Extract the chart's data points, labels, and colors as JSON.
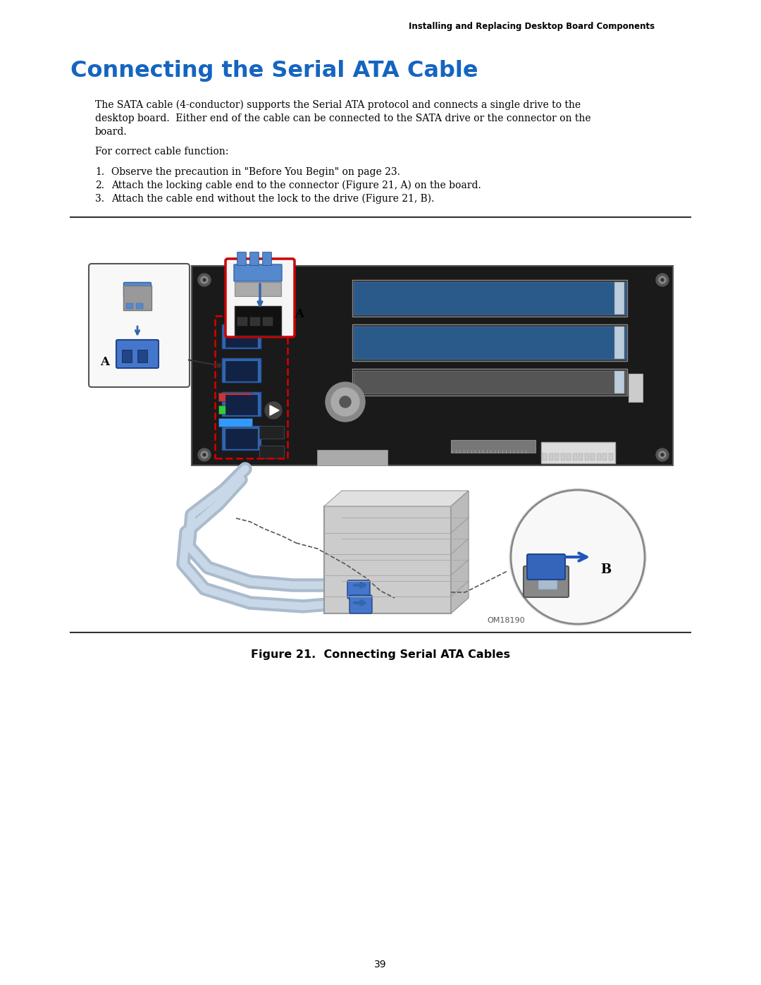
{
  "page_header": "Installing and Replacing Desktop Board Components",
  "section_title": "Connecting the Serial ATA Cable",
  "section_title_color": "#1565C0",
  "body_text_1a": "The SATA cable (4-conductor) supports the Serial ATA protocol and connects a single drive to the",
  "body_text_1b": "desktop board.  Either end of the cable can be connected to the SATA drive or the connector on the",
  "body_text_1c": "board.",
  "body_text_2": "For correct cable function:",
  "list_items": [
    "Observe the precaution in \"Before You Begin\" on page 23.",
    "Attach the locking cable end to the connector (Figure 21, A) on the board.",
    "Attach the cable end without the lock to the drive (Figure 21, B)."
  ],
  "figure_caption": "Figure 21.  Connecting Serial ATA Cables",
  "watermark": "OM18190",
  "page_number": "39",
  "background_color": "#ffffff",
  "text_color": "#000000",
  "blue_color": "#3a7abf",
  "light_blue": "#8ab4d4",
  "dark_blue": "#1a4e7a",
  "board_color": "#1a1a1a",
  "red_box_color": "#cc0000"
}
